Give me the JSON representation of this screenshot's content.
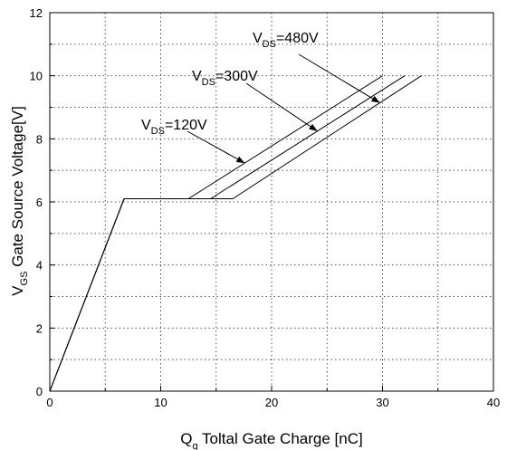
{
  "chart_data": {
    "type": "line",
    "xlabel": {
      "main": "Q",
      "sub": "g",
      "rest": " Toltal Gate Charge [nC]"
    },
    "ylabel": {
      "main": "V",
      "sub": "GS",
      "rest": " Gate Source Voltage[V]"
    },
    "xlim": [
      0,
      40
    ],
    "ylim": [
      0,
      12
    ],
    "xticks": [
      0,
      10,
      20,
      30,
      40
    ],
    "yticks": [
      0,
      2,
      4,
      6,
      8,
      10,
      12
    ],
    "grid": true,
    "series": [
      {
        "name": "VDS=120V",
        "x": [
          0,
          6.7,
          12.5,
          30.0
        ],
        "y": [
          0,
          6.1,
          6.1,
          10.0
        ]
      },
      {
        "name": "VDS=300V",
        "x": [
          0,
          6.7,
          14.5,
          32.0
        ],
        "y": [
          0,
          6.1,
          6.1,
          10.0
        ]
      },
      {
        "name": "VDS=480V",
        "x": [
          0,
          6.7,
          16.5,
          33.5
        ],
        "y": [
          0,
          6.1,
          6.1,
          10.0
        ]
      }
    ],
    "annotations": [
      {
        "main": "V",
        "sub": "DS",
        "rest": "=120V",
        "series": 0
      },
      {
        "main": "V",
        "sub": "DS",
        "rest": "=300V",
        "series": 1
      },
      {
        "main": "V",
        "sub": "DS",
        "rest": "=480V",
        "series": 2
      }
    ]
  }
}
